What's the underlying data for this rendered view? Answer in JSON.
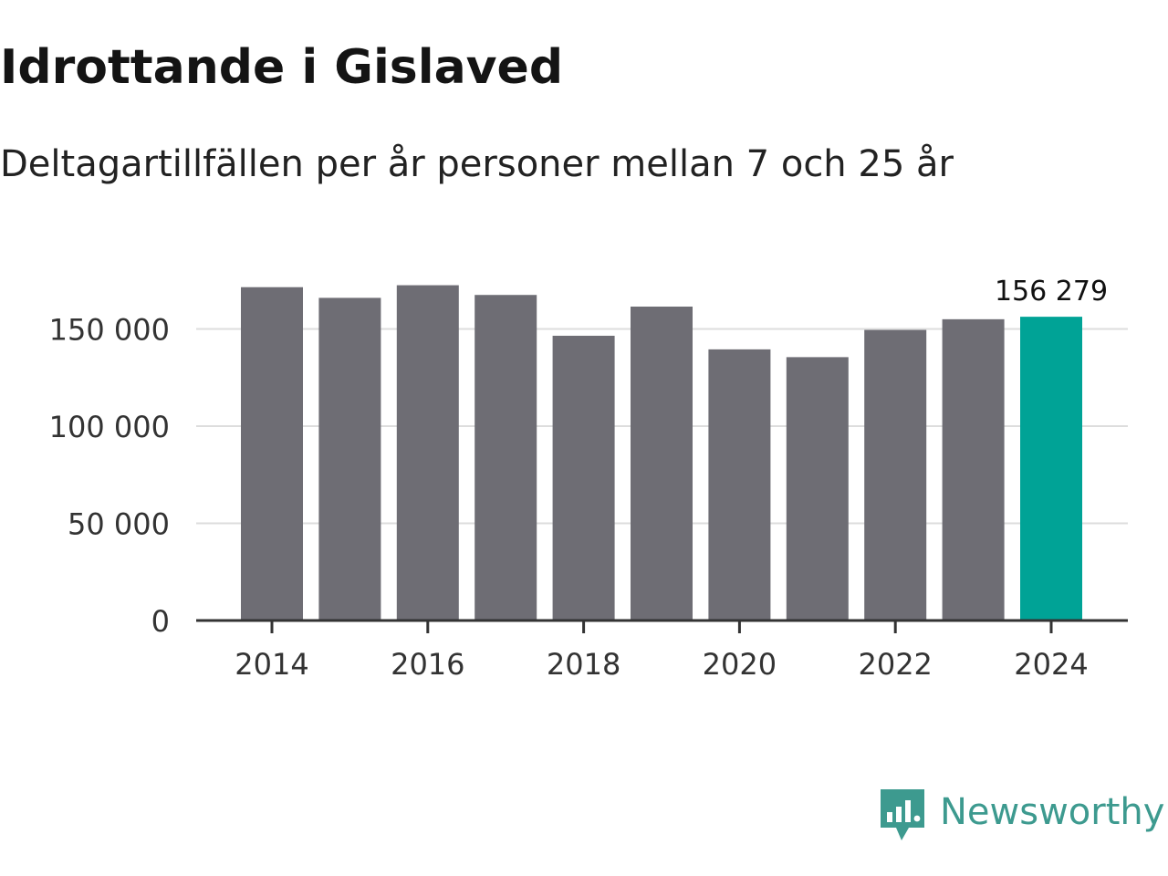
{
  "title": "Idrottande i Gislaved",
  "subtitle": "Deltagartillfällen per år personer mellan 7 och 25 år",
  "brand": {
    "name": "Newsworthy",
    "logo_icon": "bar-chart-speech-bubble-icon",
    "color": "#3d9a8f"
  },
  "colors": {
    "bar": "#6e6d74",
    "highlight": "#00a396",
    "grid": "#dddddd",
    "axis": "#333333",
    "text": "#333333"
  },
  "chart_data": {
    "type": "bar",
    "title": "Idrottande i Gislaved",
    "subtitle": "Deltagartillfällen per år personer mellan 7 och 25 år",
    "xlabel": "",
    "ylabel": "",
    "categories": [
      "2014",
      "2015",
      "2016",
      "2017",
      "2018",
      "2019",
      "2020",
      "2021",
      "2022",
      "2023",
      "2024"
    ],
    "values": [
      171500,
      166000,
      172500,
      167500,
      146500,
      161500,
      139500,
      135500,
      149500,
      155000,
      156279
    ],
    "highlight_index": 10,
    "ylim": [
      0,
      175000
    ],
    "yticks": [
      0,
      50000,
      100000,
      150000
    ],
    "ytick_labels": [
      "0",
      "50 000",
      "100 000",
      "150 000"
    ],
    "xticks": [
      "2014",
      "2016",
      "2018",
      "2020",
      "2022",
      "2024"
    ],
    "data_labels": [
      {
        "category": "2024",
        "text": "156 279"
      }
    ],
    "grid": true,
    "legend": "none"
  }
}
